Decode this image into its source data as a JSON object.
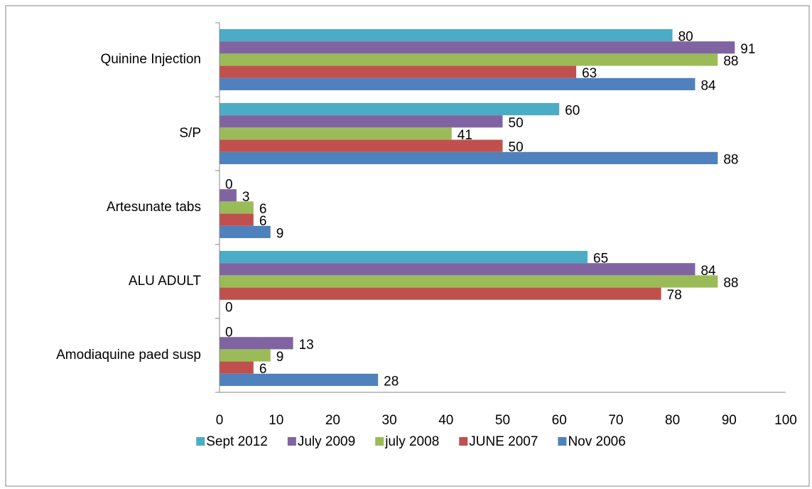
{
  "chart_data": {
    "type": "bar",
    "orientation": "horizontal",
    "categories": [
      "Quinine Injection",
      "S/P",
      "Artesunate tabs",
      "ALU ADULT",
      "Amodiaquine paed susp"
    ],
    "series": [
      {
        "name": "Sept 2012",
        "color": "#4bacc6",
        "values": [
          80,
          60,
          0,
          65,
          0
        ]
      },
      {
        "name": "July 2009",
        "color": "#8064a2",
        "values": [
          91,
          50,
          3,
          84,
          13
        ]
      },
      {
        "name": "july 2008",
        "color": "#9bbb59",
        "values": [
          88,
          41,
          6,
          88,
          9
        ]
      },
      {
        "name": "JUNE 2007",
        "color": "#c0504d",
        "values": [
          63,
          50,
          6,
          78,
          6
        ]
      },
      {
        "name": "Nov 2006",
        "color": "#4f81bd",
        "values": [
          84,
          88,
          9,
          0,
          28
        ]
      }
    ],
    "xlim": [
      0,
      100
    ],
    "xticks": [
      0,
      10,
      20,
      30,
      40,
      50,
      60,
      70,
      80,
      90,
      100
    ],
    "grid": false,
    "legend": "bottom",
    "data_labels": true
  }
}
